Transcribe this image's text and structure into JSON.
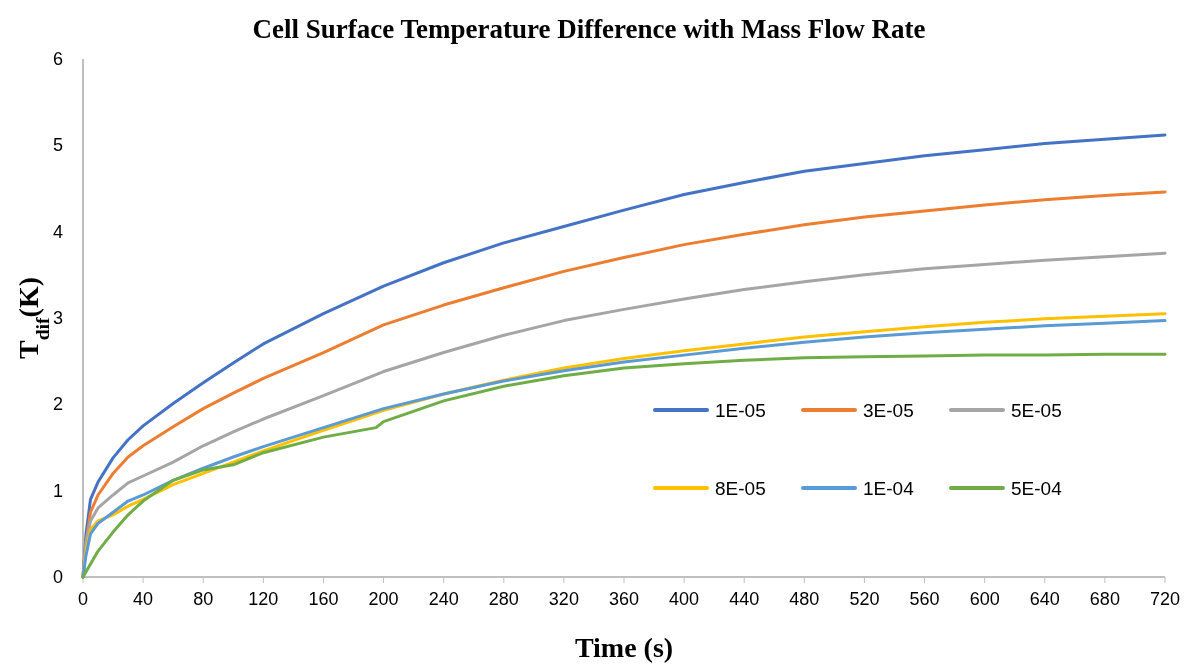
{
  "chart_data": {
    "type": "line",
    "title": "Cell Surface Temperature Difference with Mass Flow Rate",
    "xlabel": "Time (s)",
    "ylabel": "T$_{dif}$(K)",
    "x": [
      0,
      2,
      5,
      10,
      20,
      30,
      40,
      60,
      80,
      100,
      120,
      160,
      200,
      240,
      280,
      320,
      360,
      400,
      440,
      480,
      520,
      560,
      600,
      640,
      680,
      720
    ],
    "series": [
      {
        "name": "1E-05",
        "color": "#4472c4",
        "values": [
          0,
          0.5,
          0.9,
          1.1,
          1.38,
          1.59,
          1.75,
          2.01,
          2.25,
          2.48,
          2.7,
          3.05,
          3.37,
          3.64,
          3.87,
          4.06,
          4.25,
          4.43,
          4.57,
          4.7,
          4.79,
          4.88,
          4.95,
          5.02,
          5.07,
          5.12
        ]
      },
      {
        "name": "3E-05",
        "color": "#ed7d31",
        "values": [
          0,
          0.4,
          0.75,
          0.95,
          1.2,
          1.39,
          1.52,
          1.74,
          1.95,
          2.13,
          2.3,
          2.6,
          2.92,
          3.15,
          3.35,
          3.54,
          3.7,
          3.85,
          3.97,
          4.08,
          4.17,
          4.24,
          4.31,
          4.37,
          4.42,
          4.46
        ]
      },
      {
        "name": "5E-05",
        "color": "#a5a5a5",
        "values": [
          0,
          0.4,
          0.65,
          0.8,
          0.95,
          1.09,
          1.17,
          1.33,
          1.52,
          1.68,
          1.83,
          2.1,
          2.38,
          2.6,
          2.8,
          2.97,
          3.1,
          3.22,
          3.33,
          3.42,
          3.5,
          3.57,
          3.62,
          3.67,
          3.71,
          3.75
        ]
      },
      {
        "name": "8E-05",
        "color": "#ffc000",
        "values": [
          0,
          0.3,
          0.55,
          0.65,
          0.72,
          0.82,
          0.9,
          1.07,
          1.2,
          1.33,
          1.46,
          1.7,
          1.93,
          2.12,
          2.28,
          2.42,
          2.53,
          2.62,
          2.7,
          2.78,
          2.84,
          2.9,
          2.95,
          2.99,
          3.02,
          3.05
        ]
      },
      {
        "name": "1E-04",
        "color": "#5b9bd5",
        "values": [
          0,
          0.25,
          0.5,
          0.62,
          0.75,
          0.88,
          0.95,
          1.12,
          1.26,
          1.39,
          1.51,
          1.73,
          1.95,
          2.12,
          2.27,
          2.39,
          2.49,
          2.57,
          2.65,
          2.72,
          2.78,
          2.83,
          2.87,
          2.91,
          2.94,
          2.97
        ]
      },
      {
        "name": "5E-04",
        "color": "#70ad47",
        "x": [
          0,
          10,
          20,
          30,
          40,
          60,
          80,
          100,
          120,
          160,
          195,
          200,
          240,
          280,
          320,
          360,
          400,
          440,
          480,
          520,
          560,
          600,
          640,
          680,
          720
        ],
        "values": [
          0,
          0.3,
          0.52,
          0.72,
          0.88,
          1.12,
          1.24,
          1.3,
          1.44,
          1.62,
          1.73,
          1.8,
          2.04,
          2.21,
          2.33,
          2.42,
          2.47,
          2.51,
          2.54,
          2.55,
          2.56,
          2.57,
          2.57,
          2.58,
          2.58
        ]
      }
    ],
    "xlim": [
      0,
      720
    ],
    "xticks": [
      0,
      40,
      80,
      120,
      160,
      200,
      240,
      280,
      320,
      360,
      400,
      440,
      480,
      520,
      560,
      600,
      640,
      680,
      720
    ],
    "ylim": [
      0,
      6
    ],
    "yticks": [
      0,
      1,
      2,
      3,
      4,
      5,
      6
    ],
    "grid": false,
    "legend": "right",
    "marker": "none",
    "line_style": "solid"
  }
}
